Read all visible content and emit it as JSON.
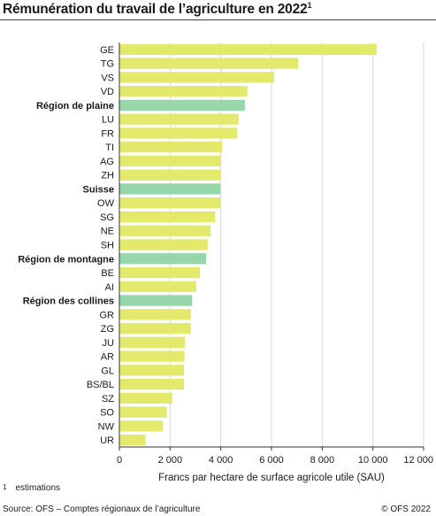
{
  "header": {
    "title": "Rémunération du travail de l’agriculture en 2022",
    "title_note": "1"
  },
  "footnote": {
    "mark": "1",
    "text": "estimations"
  },
  "footer": {
    "source": "Source: OFS – Comptes régionaux de l’agriculture",
    "copyright": "© OFS 2022"
  },
  "colors": {
    "canton": "#e3e96b",
    "region": "#95d6aa",
    "grid": "#d9d9d9",
    "axis": "#333333"
  },
  "chart_data": {
    "type": "bar",
    "orientation": "horizontal",
    "xlabel": "Francs par hectare de surface agricole utile (SAU)",
    "xlim": [
      0,
      12000
    ],
    "xticks": [
      0,
      2000,
      4000,
      6000,
      8000,
      10000,
      12000
    ],
    "xtick_labels": [
      "0",
      "2 000",
      "4 000",
      "6 000",
      "8 000",
      "10 000",
      "12 000"
    ],
    "grid": true,
    "categories": [
      "GE",
      "TG",
      "VS",
      "VD",
      "Région de plaine",
      "LU",
      "FR",
      "TI",
      "AG",
      "ZH",
      "Suisse",
      "OW",
      "SG",
      "NE",
      "SH",
      "Région de montagne",
      "BE",
      "AI",
      "Région des collines",
      "GR",
      "ZG",
      "JU",
      "AR",
      "GL",
      "BS/BL",
      "SZ",
      "SO",
      "NW",
      "UR"
    ],
    "values": [
      10150,
      7050,
      6100,
      5050,
      4950,
      4700,
      4650,
      4050,
      4000,
      3980,
      3980,
      3980,
      3780,
      3600,
      3480,
      3420,
      3180,
      3030,
      2870,
      2820,
      2820,
      2580,
      2570,
      2550,
      2550,
      2080,
      1870,
      1720,
      1030
    ],
    "highlight": [
      false,
      false,
      false,
      false,
      true,
      false,
      false,
      false,
      false,
      false,
      true,
      false,
      false,
      false,
      false,
      true,
      false,
      false,
      true,
      false,
      false,
      false,
      false,
      false,
      false,
      false,
      false,
      false,
      false
    ]
  }
}
